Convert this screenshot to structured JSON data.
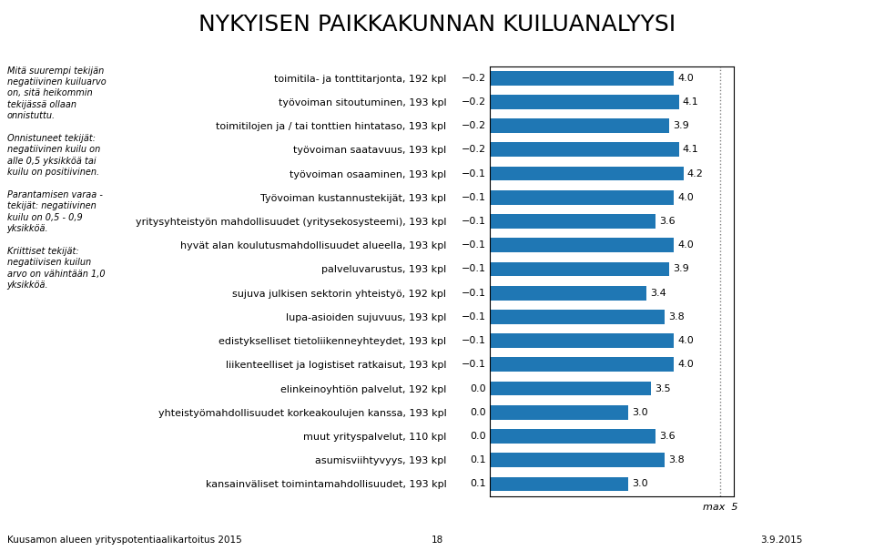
{
  "chart_data": {
    "type": "bar",
    "orientation": "horizontal",
    "title": "NYKYISEN PAIKKAKUNNAN KUILUANALYYSI",
    "categories": [
      "toimitila- ja tonttitarjonta, 192 kpl",
      "työvoiman sitoutuminen, 193 kpl",
      "toimitilojen ja / tai tonttien hintataso, 193 kpl",
      "työvoiman saatavuus, 193 kpl",
      "työvoiman osaaminen, 193 kpl",
      "Työvoiman kustannustekijät, 193 kpl",
      "yritysyhteistyön mahdollisuudet (yritysekosysteemi), 193 kpl",
      "hyvät alan koulutusmahdollisuudet alueella, 193 kpl",
      "palveluvarustus, 193 kpl",
      "sujuva julkisen sektorin yhteistyö, 192 kpl",
      "lupa-asioiden sujuvuus, 193 kpl",
      "edistykselliset tietoliikenneyhteydet, 193 kpl",
      "liikenteelliset ja logistiset ratkaisut, 193 kpl",
      "elinkeinoyhtiön palvelut, 192 kpl",
      "yhteistyömahdollisuudet korkeakoulujen kanssa, 193 kpl",
      "muut yrityspalvelut, 110 kpl",
      "asumisviihtyvyys, 193 kpl",
      "kansainväliset toimintamahdollisuudet, 193 kpl"
    ],
    "values": [
      4.0,
      4.1,
      3.9,
      4.1,
      4.2,
      4.0,
      3.6,
      4.0,
      3.9,
      3.4,
      3.8,
      4.0,
      4.0,
      3.5,
      3.0,
      3.6,
      3.8,
      3.0
    ],
    "data_labels": true,
    "xlim": [
      0,
      5.3
    ],
    "xticks": [],
    "tick_labels": "y",
    "grid": false,
    "gap_values": [
      -0.2,
      -0.2,
      -0.2,
      -0.2,
      -0.1,
      -0.1,
      -0.1,
      -0.1,
      -0.1,
      -0.1,
      -0.1,
      -0.1,
      -0.1,
      0.0,
      0.0,
      0.0,
      0.1,
      0.1
    ],
    "gap_value_labels": [
      "−0.2",
      "−0.2",
      "−0.2",
      "−0.2",
      "−0.1",
      "−0.1",
      "−0.1",
      "−0.1",
      "−0.1",
      "−0.1",
      "−0.1",
      "−0.1",
      "−0.1",
      "0.0",
      "0.0",
      "0.0",
      "0.1",
      "0.1"
    ],
    "max_value": 5,
    "max_label": "max  5",
    "note": "Mitä suurempi tekijän\nnegatiivinen kuiluarvo\non, sitä heikommin\ntekijässä ollaan\nonnistuttu.\n\nOnnistuneet tekijät:\nnegatiivinen kuilu on\nalle 0,5 yksikköä tai\nkuilu on positiivinen.\n\nParantamisen varaa -\ntekijät: negatiivinen\nkuilu on 0,5 - 0,9\nyksikköä.\n\nKriittiset tekijät:\nnegatiivisen kuilun\narvo on vähintään 1,0\nyksikköä.",
    "footnotes": [
      "Kuusamon alueen yrityspotentiaalikartoitus 2015",
      "18",
      "3.9.2015"
    ]
  }
}
